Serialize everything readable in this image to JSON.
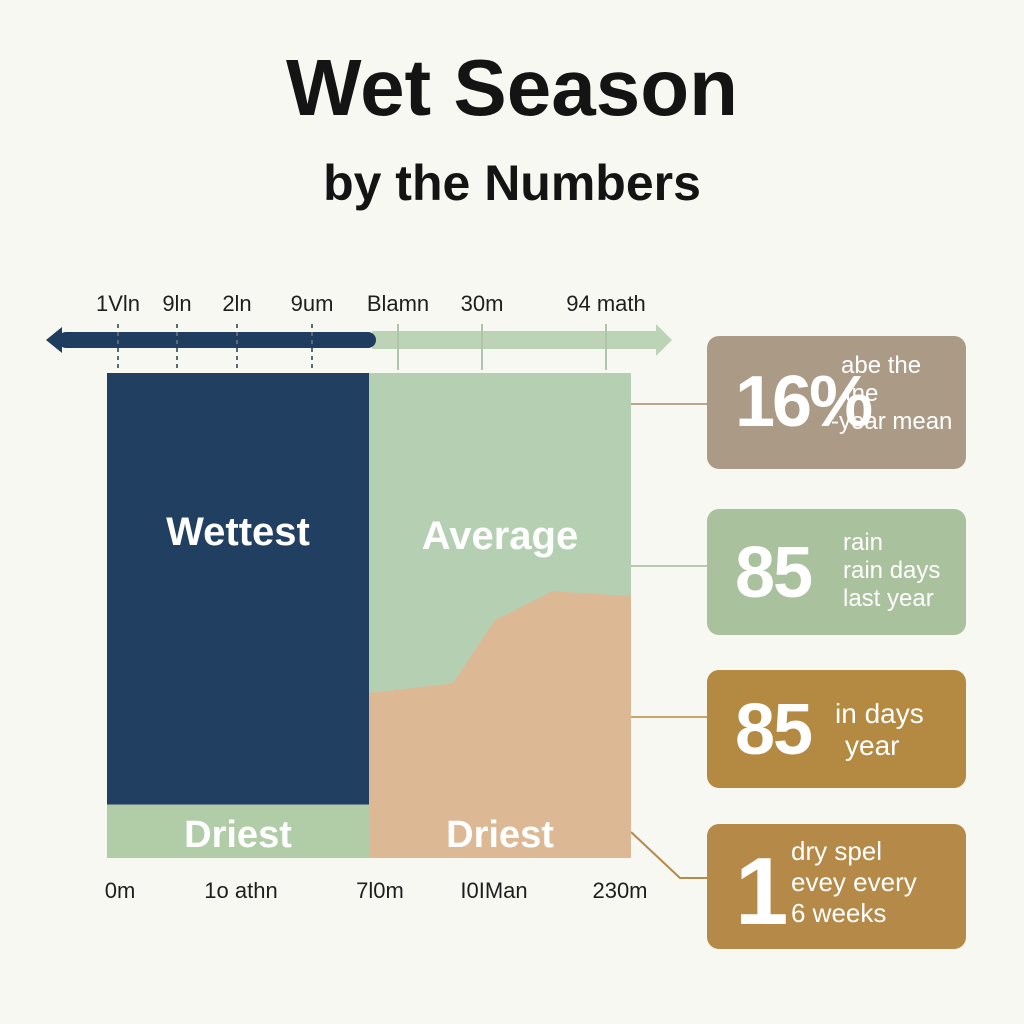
{
  "title": "Wet Season",
  "subtitle": "by the Numbers",
  "colors": {
    "background": "#f8f8f3",
    "wettest": "#213f61",
    "average": "#b4cfb1",
    "driest_green": "#b0cda8",
    "driest_tan": "#dcb994",
    "arrow_dark": "#1f3d5e",
    "arrow_light": "#bcd3b6",
    "card_taupe": "#ab9b86",
    "card_sage": "#a9c19c",
    "card_ochre": "#b48941"
  },
  "chart_data": {
    "type": "area",
    "top_axis_ticks": [
      "1Vln",
      "9ln",
      "2ln",
      "9um",
      "Blamn",
      "30m",
      "94 math"
    ],
    "bottom_axis_ticks": [
      "0m",
      "1o athn",
      "7l0m",
      "I0IMan",
      "230m"
    ],
    "regions": [
      {
        "name": "Wettest",
        "label": "Wettest"
      },
      {
        "name": "Average",
        "label": "Average"
      },
      {
        "name": "Driest",
        "label": "Driest"
      },
      {
        "name": "Driest",
        "label": "Driest"
      }
    ],
    "driest_profile": [
      {
        "x": 0.0,
        "y": 0.34
      },
      {
        "x": 0.32,
        "y": 0.36
      },
      {
        "x": 0.48,
        "y": 0.49
      },
      {
        "x": 0.7,
        "y": 0.55
      },
      {
        "x": 1.0,
        "y": 0.54
      }
    ],
    "wettest_share": 0.5,
    "wettest_floor": 0.11
  },
  "stats": [
    {
      "value": "16%",
      "lines": [
        "abe the",
        "tne",
        "-year mean"
      ]
    },
    {
      "value": "85",
      "lines": [
        "rain",
        "rain days",
        "last year"
      ]
    },
    {
      "value": "85",
      "lines": [
        "in days",
        "year"
      ]
    },
    {
      "value": "1",
      "lines": [
        "dry spel",
        "evey every",
        "6 weeks"
      ]
    }
  ]
}
